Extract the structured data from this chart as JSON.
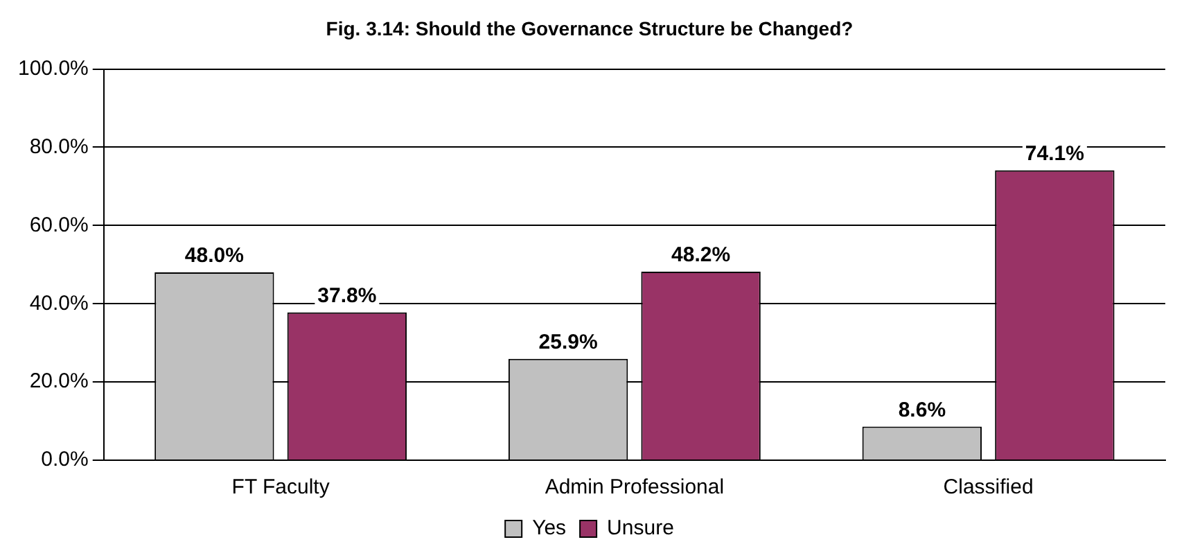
{
  "chart_data": {
    "type": "bar",
    "title": "Fig. 3.14: Should the Governance Structure be Changed?",
    "categories": [
      "FT Faculty",
      "Admin Professional",
      "Classified"
    ],
    "series": [
      {
        "name": "Yes",
        "color": "#c0c0c0",
        "values": [
          48.0,
          25.9,
          8.6
        ],
        "value_labels": [
          "48.0%",
          "25.9%",
          "8.6%"
        ]
      },
      {
        "name": "Unsure",
        "color": "#993366",
        "values": [
          37.8,
          48.2,
          74.1
        ],
        "value_labels": [
          "37.8%",
          "48.2%",
          "74.1%"
        ]
      }
    ],
    "ylim": [
      0,
      100
    ],
    "yticks": [
      {
        "value": 0,
        "label": "0.0%"
      },
      {
        "value": 20,
        "label": "20.0%"
      },
      {
        "value": 40,
        "label": "40.0%"
      },
      {
        "value": 60,
        "label": "60.0%"
      },
      {
        "value": 80,
        "label": "80.0%"
      },
      {
        "value": 100,
        "label": "100.0%"
      }
    ],
    "grid": "y",
    "legend": "bottom"
  }
}
